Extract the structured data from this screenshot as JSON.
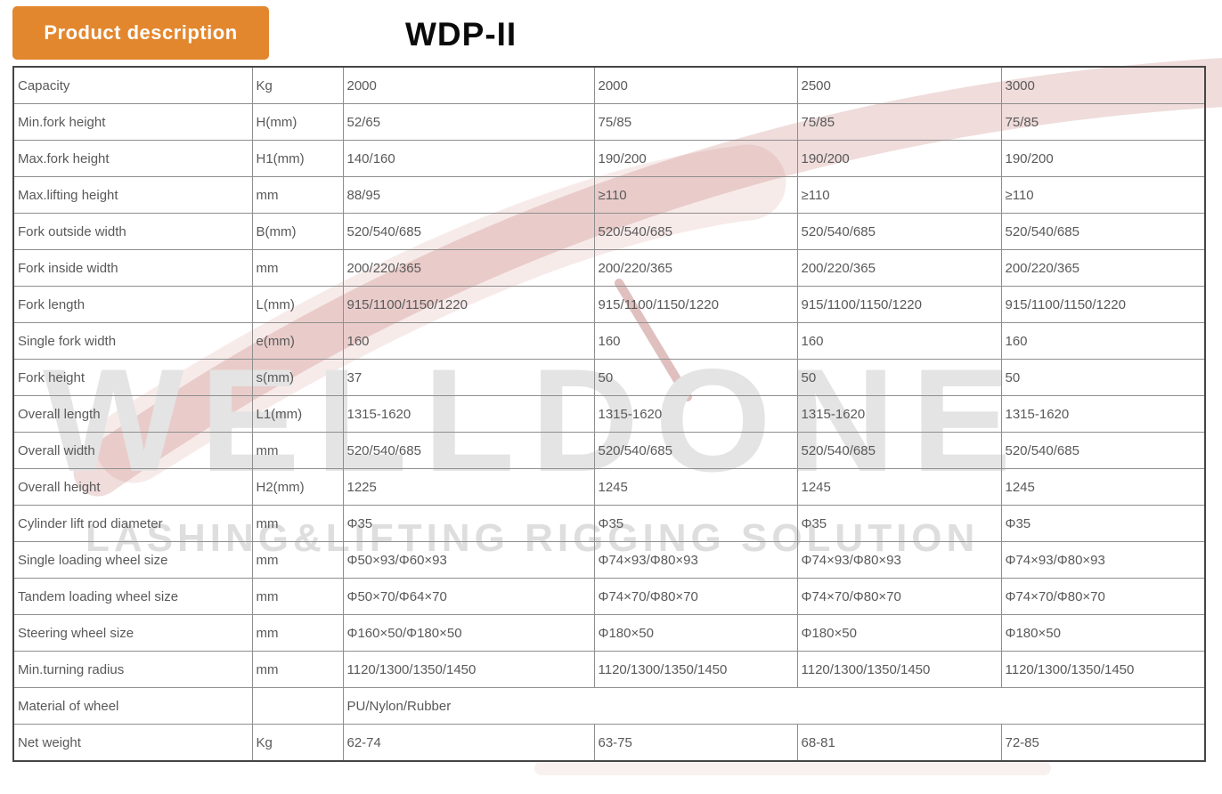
{
  "header": {
    "badge_label": "Product description",
    "title": "WDP-II"
  },
  "watermark": {
    "brand": "WELLDONE",
    "tagline": "LASHING&LIFTING RIGGING SOLUTION"
  },
  "colors": {
    "badge_orange": "#e2872e",
    "swoosh_red": "#a63c38",
    "watermark_gray": "#e4e4e4",
    "table_border_dark": "#454545",
    "table_border_light": "#8e8e8e",
    "cell_text_gray": "#595959"
  },
  "table": {
    "rows": [
      {
        "label": "Capacity",
        "unit": "Kg",
        "values": [
          "2000",
          "2000",
          "2500",
          "3000"
        ]
      },
      {
        "label": "Min.fork height",
        "unit": "H(mm)",
        "values": [
          "52/65",
          "75/85",
          "75/85",
          "75/85"
        ]
      },
      {
        "label": "Max.fork height",
        "unit": "H1(mm)",
        "values": [
          "140/160",
          "190/200",
          "190/200",
          "190/200"
        ]
      },
      {
        "label": "Max.lifting height",
        "unit": "mm",
        "values": [
          "88/95",
          "≥110",
          "≥110",
          "≥110"
        ]
      },
      {
        "label": "Fork outside width",
        "unit": "B(mm)",
        "values": [
          "520/540/685",
          "520/540/685",
          "520/540/685",
          "520/540/685"
        ]
      },
      {
        "label": "Fork inside width",
        "unit": "mm",
        "values": [
          "200/220/365",
          "200/220/365",
          "200/220/365",
          "200/220/365"
        ]
      },
      {
        "label": "Fork length",
        "unit": "L(mm)",
        "values": [
          "915/1100/1150/1220",
          "915/1100/1150/1220",
          "915/1100/1150/1220",
          "915/1100/1150/1220"
        ]
      },
      {
        "label": "Single fork width",
        "unit": "e(mm)",
        "values": [
          "160",
          "160",
          "160",
          "160"
        ]
      },
      {
        "label": "Fork height",
        "unit": "s(mm)",
        "values": [
          "37",
          "50",
          "50",
          "50"
        ]
      },
      {
        "label": "Overall length",
        "unit": "L1(mm)",
        "values": [
          "1315-1620",
          "1315-1620",
          "1315-1620",
          "1315-1620"
        ]
      },
      {
        "label": "Overall width",
        "unit": "mm",
        "values": [
          "520/540/685",
          "520/540/685",
          "520/540/685",
          "520/540/685"
        ]
      },
      {
        "label": "Overall height",
        "unit": "H2(mm)",
        "values": [
          "1225",
          "1245",
          "1245",
          "1245"
        ]
      },
      {
        "label": "Cylinder lift rod diameter",
        "unit": "mm",
        "values": [
          "Φ35",
          "Φ35",
          "Φ35",
          "Φ35"
        ]
      },
      {
        "label": "Single loading wheel size",
        "unit": "mm",
        "values": [
          "Φ50×93/Φ60×93",
          "Φ74×93/Φ80×93",
          "Φ74×93/Φ80×93",
          "Φ74×93/Φ80×93"
        ]
      },
      {
        "label": "Tandem loading wheel size",
        "unit": "mm",
        "values": [
          "Φ50×70/Φ64×70",
          "Φ74×70/Φ80×70",
          "Φ74×70/Φ80×70",
          "Φ74×70/Φ80×70"
        ]
      },
      {
        "label": "Steering wheel size",
        "unit": "mm",
        "values": [
          "Φ160×50/Φ180×50",
          "Φ180×50",
          "Φ180×50",
          "Φ180×50"
        ]
      },
      {
        "label": "Min.turning radius",
        "unit": "mm",
        "values": [
          "1120/1300/1350/1450",
          "1120/1300/1350/1450",
          "1120/1300/1350/1450",
          "1120/1300/1350/1450"
        ]
      },
      {
        "label": "Material of wheel",
        "unit": "",
        "span": true,
        "values": [
          "PU/Nylon/Rubber"
        ]
      },
      {
        "label": "Net weight",
        "unit": "Kg",
        "values": [
          "62-74",
          "63-75",
          "68-81",
          "72-85"
        ]
      }
    ]
  }
}
